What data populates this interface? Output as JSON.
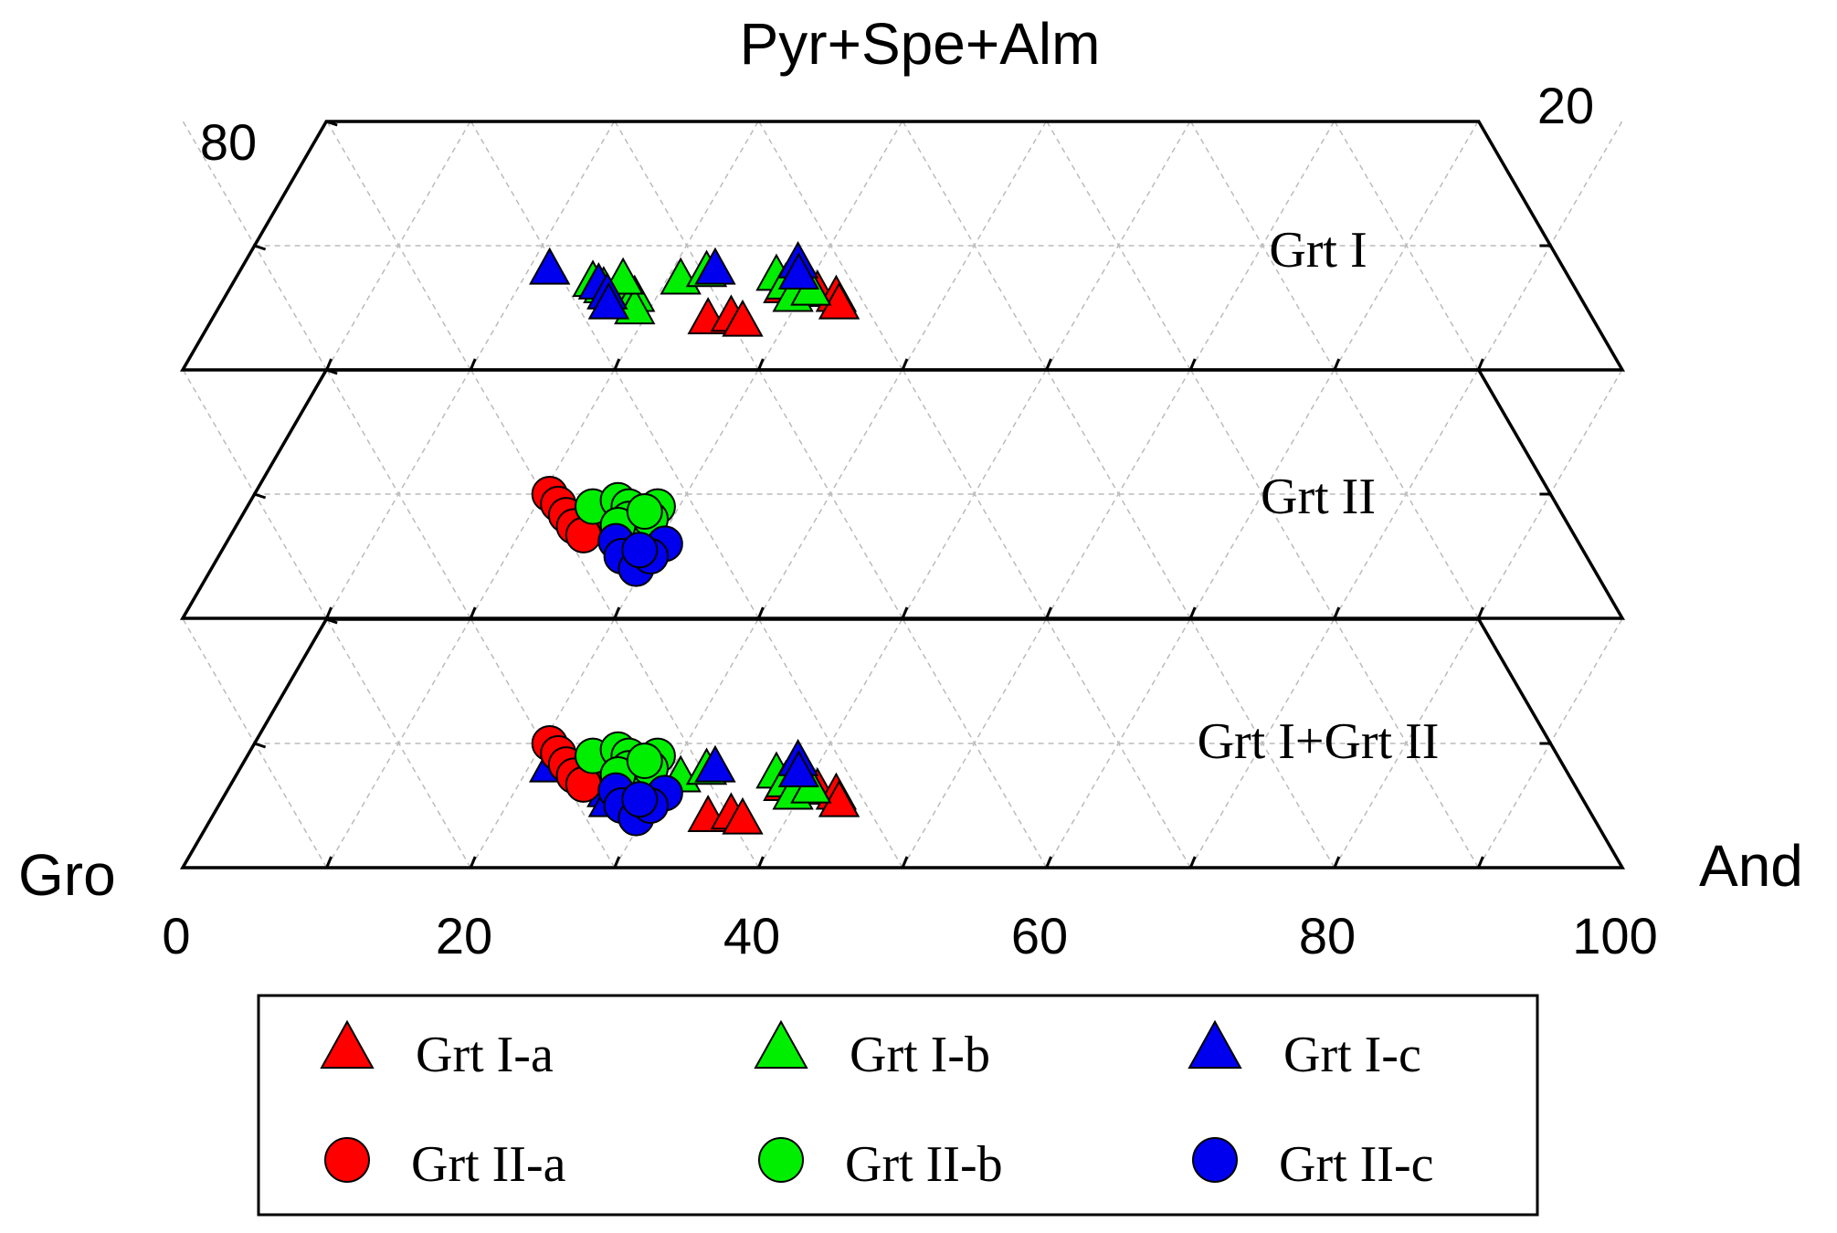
{
  "chart_data": {
    "type": "scatter",
    "diagram": "ternary-truncated",
    "top_label": "Pyr+Spe+Alm",
    "left_label": "Gro",
    "right_label": "And",
    "side_tick_left": "80",
    "side_tick_right": "20",
    "x_ticks": [
      "0",
      "20",
      "40",
      "60",
      "80",
      "100"
    ],
    "x_range": [
      0,
      100
    ],
    "y_range": [
      0,
      20
    ],
    "grid": true,
    "legend_placement": "bottom",
    "panels": [
      {
        "label": "Grt I",
        "groups": [
          "Grt I-a",
          "Grt I-b",
          "Grt I-c"
        ]
      },
      {
        "label": "Grt II",
        "groups": [
          "Grt II-a",
          "Grt II-b",
          "Grt II-c"
        ]
      },
      {
        "label": "Grt I+Grt II",
        "groups": [
          "Grt I-a",
          "Grt I-b",
          "Grt I-c",
          "Grt II-a",
          "Grt II-b",
          "Grt II-c"
        ]
      }
    ],
    "series": [
      {
        "name": "Grt I-a",
        "marker": "triangle",
        "color": "#ff0000",
        "x": [
          34.5,
          36.0,
          37.0,
          38.5,
          39.5,
          41.0,
          42.5,
          43.0
        ],
        "y": [
          4.0,
          4.2,
          3.8,
          6.5,
          6.8,
          6.2,
          5.8,
          5.2
        ]
      },
      {
        "name": "Grt I-b",
        "marker": "triangle",
        "color": "#00ee00",
        "x": [
          25.0,
          26.0,
          27.5,
          28.5,
          29.0,
          31.0,
          32.5,
          37.5,
          38.5,
          39.5,
          40.5,
          27.0
        ],
        "y": [
          7.0,
          6.5,
          5.5,
          5.8,
          4.8,
          7.2,
          7.8,
          7.5,
          6.8,
          5.8,
          6.3,
          7.2
        ]
      },
      {
        "name": "Grt I-c",
        "marker": "triangle",
        "color": "#0000ee",
        "x": [
          21.5,
          25.5,
          26.5,
          27.0,
          33.0,
          38.5,
          39.0
        ],
        "y": [
          8.0,
          6.8,
          6.0,
          5.2,
          8.0,
          8.5,
          7.6
        ]
      },
      {
        "name": "Grt II-a",
        "marker": "circle",
        "color": "#ff0000",
        "x": [
          20.5,
          21.5,
          22.5,
          23.5,
          24.5,
          25.5,
          26.0
        ],
        "y": [
          10.0,
          9.2,
          8.3,
          7.4,
          6.7,
          9.0,
          8.0
        ]
      },
      {
        "name": "Grt II-b",
        "marker": "circle",
        "color": "#00ee00",
        "x": [
          24.0,
          25.5,
          26.5,
          27.0,
          27.5,
          28.5,
          28.5,
          26.5,
          27.8
        ],
        "y": [
          9.0,
          9.5,
          9.0,
          8.0,
          7.0,
          9.0,
          8.0,
          7.5,
          8.6
        ]
      },
      {
        "name": "Grt II-c",
        "marker": "circle",
        "color": "#0000ee",
        "x": [
          27.0,
          28.0,
          29.5,
          30.5,
          30.0,
          29.0
        ],
        "y": [
          6.2,
          5.0,
          4.0,
          6.0,
          5.0,
          5.5
        ]
      }
    ]
  }
}
